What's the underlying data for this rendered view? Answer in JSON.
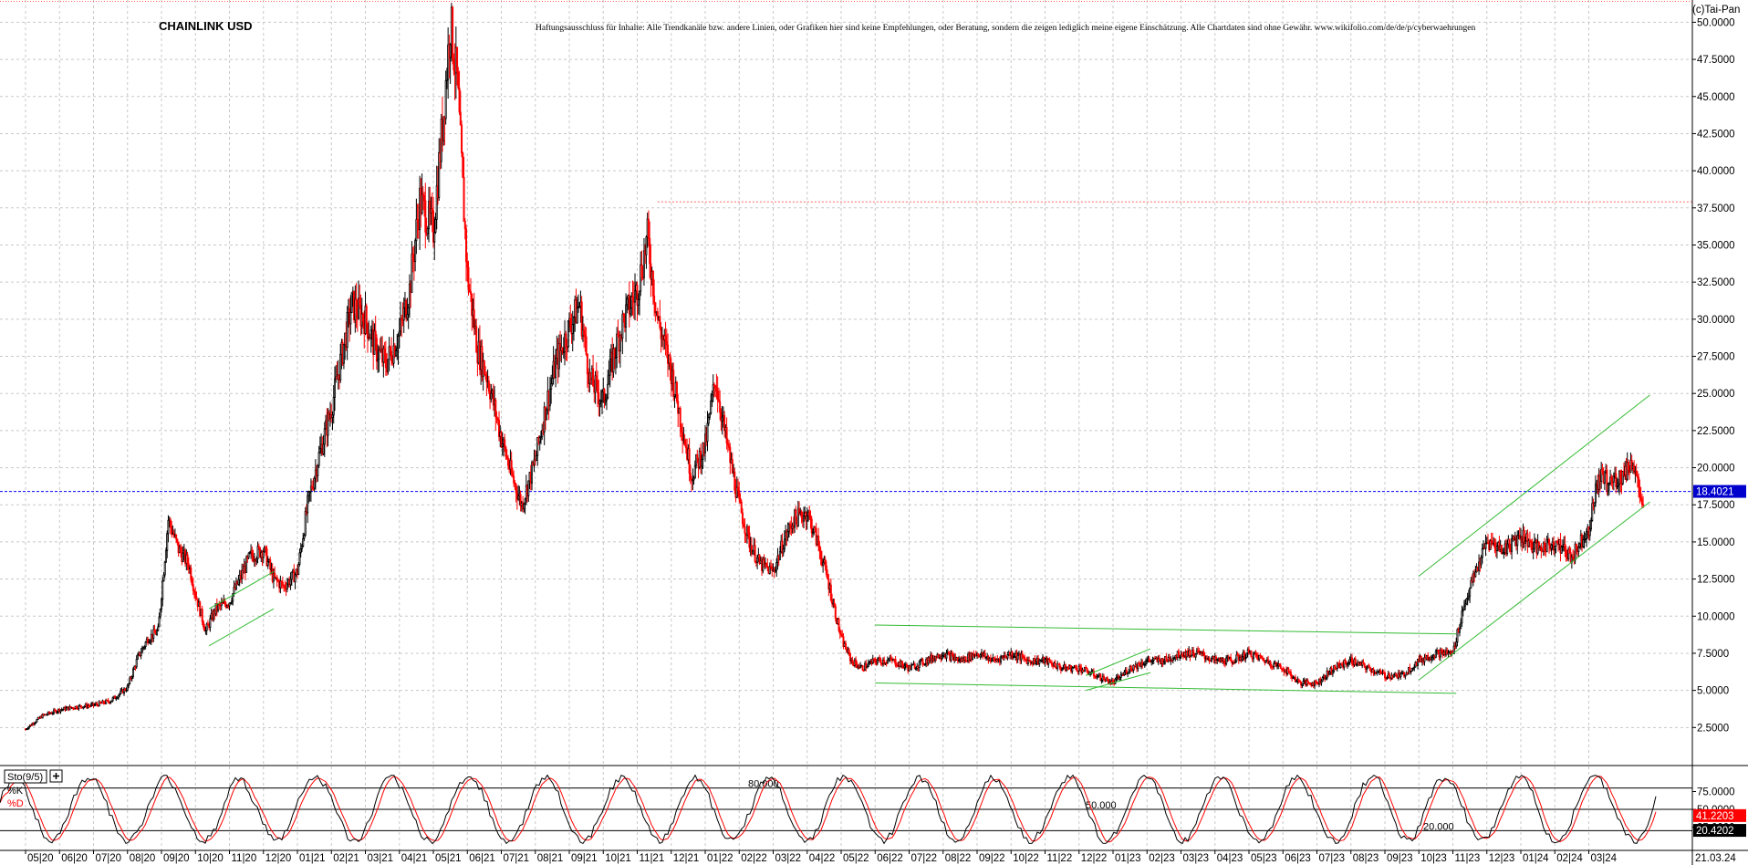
{
  "header": {
    "title": "CHAINLINK USD",
    "disclaimer": "Haftungsausschluss für Inhalte: Alle Trendkanäle bzw. andere Linien, oder Grafiken hier sind keine Empfehlungen, oder Beratung, sondern die zeigen lediglich meine eigene Einschätzung. Alle Chartdaten sind ohne Gewähr.  www.wikifolio.com/de/de/p/cyberwaehrungen",
    "copyright": "(c)Tai-Pan"
  },
  "colors": {
    "up_candle": "#000000",
    "down_candle": "#ff0000",
    "trend_lines": "#33bb33",
    "current_price_line": "#0000ff",
    "resistance_line": "#ff6666",
    "price_label_bg": "#0000cc",
    "stoch_k": "#000000",
    "stoch_d": "#ff0000",
    "grid": "#c8c8c8"
  },
  "chart_data": [
    {
      "type": "candlestick",
      "title": "CHAINLINK USD",
      "ylim": [
        0,
        51.5
      ],
      "yticks": [
        "2.5000",
        "5.0000",
        "7.5000",
        "10.0000",
        "12.5000",
        "15.0000",
        "17.5000",
        "20.0000",
        "22.5000",
        "25.0000",
        "27.5000",
        "30.0000",
        "32.5000",
        "35.0000",
        "37.5000",
        "40.0000",
        "42.5000",
        "45.0000",
        "47.5000",
        "50.0000"
      ],
      "x_tick_labels": [
        "05|20",
        "06|20",
        "07|20",
        "08|20",
        "09|20",
        "10|20",
        "11|20",
        "12|20",
        "01|21",
        "02|21",
        "03|21",
        "04|21",
        "05|21",
        "06|21",
        "07|21",
        "08|21",
        "09|21",
        "10|21",
        "11|21",
        "12|21",
        "01|22",
        "02|22",
        "03|22",
        "04|22",
        "05|22",
        "06|22",
        "07|22",
        "08|22",
        "09|22",
        "10|22",
        "11|22",
        "12|22",
        "01|23",
        "02|23",
        "03|23",
        "04|23",
        "05|23",
        "06|23",
        "07|23",
        "08|23",
        "09|23",
        "10|23",
        "11|23",
        "12|23",
        "01|24",
        "02|24",
        "03|24"
      ],
      "x_end_label": "21.03.24",
      "x_month_range": [
        0,
        47
      ],
      "close_path": [
        [
          0,
          2.4
        ],
        [
          0.5,
          3.3
        ],
        [
          1.0,
          3.7
        ],
        [
          1.5,
          3.9
        ],
        [
          2.0,
          4.0
        ],
        [
          2.5,
          4.3
        ],
        [
          3.0,
          5.2
        ],
        [
          3.3,
          7.2
        ],
        [
          3.6,
          8.5
        ],
        [
          3.9,
          9.0
        ],
        [
          4.2,
          16.5
        ],
        [
          4.5,
          14.5
        ],
        [
          4.8,
          13.5
        ],
        [
          5.0,
          11.5
        ],
        [
          5.3,
          9.0
        ],
        [
          5.6,
          10.5
        ],
        [
          6.0,
          11.0
        ],
        [
          6.3,
          12.5
        ],
        [
          6.6,
          14.0
        ],
        [
          7.0,
          14.5
        ],
        [
          7.3,
          12.5
        ],
        [
          7.6,
          12.0
        ],
        [
          8.0,
          13.0
        ],
        [
          8.3,
          17.5
        ],
        [
          8.6,
          20.5
        ],
        [
          9.0,
          24.0
        ],
        [
          9.3,
          27.5
        ],
        [
          9.6,
          31.0
        ],
        [
          10.0,
          30.0
        ],
        [
          10.3,
          28.0
        ],
        [
          10.6,
          27.0
        ],
        [
          11.0,
          29.0
        ],
        [
          11.3,
          32.0
        ],
        [
          11.6,
          38.0
        ],
        [
          12.0,
          36.0
        ],
        [
          12.3,
          44.0
        ],
        [
          12.5,
          50.0
        ],
        [
          12.7,
          46.0
        ],
        [
          13.0,
          33.0
        ],
        [
          13.3,
          28.0
        ],
        [
          13.6,
          26.0
        ],
        [
          14.0,
          22.0
        ],
        [
          14.3,
          19.5
        ],
        [
          14.6,
          17.5
        ],
        [
          15.0,
          20.5
        ],
        [
          15.3,
          24.0
        ],
        [
          15.6,
          27.0
        ],
        [
          16.0,
          29.5
        ],
        [
          16.3,
          31.0
        ],
        [
          16.6,
          26.0
        ],
        [
          17.0,
          24.5
        ],
        [
          17.3,
          27.5
        ],
        [
          17.6,
          30.0
        ],
        [
          18.0,
          32.0
        ],
        [
          18.3,
          35.5
        ],
        [
          18.6,
          30.0
        ],
        [
          19.0,
          26.5
        ],
        [
          19.3,
          23.0
        ],
        [
          19.6,
          19.5
        ],
        [
          20.0,
          21.5
        ],
        [
          20.3,
          26.0
        ],
        [
          20.6,
          22.0
        ],
        [
          21.0,
          17.5
        ],
        [
          21.3,
          15.0
        ],
        [
          21.6,
          13.5
        ],
        [
          22.0,
          13.0
        ],
        [
          22.3,
          15.0
        ],
        [
          22.6,
          16.5
        ],
        [
          23.0,
          17.0
        ],
        [
          23.3,
          15.0
        ],
        [
          23.6,
          12.5
        ],
        [
          24.0,
          8.5
        ],
        [
          24.3,
          7.0
        ],
        [
          24.6,
          6.5
        ],
        [
          25.0,
          7.0
        ],
        [
          25.5,
          7.0
        ],
        [
          26.0,
          6.5
        ],
        [
          26.5,
          7.0
        ],
        [
          27.0,
          7.5
        ],
        [
          27.5,
          7.0
        ],
        [
          28.0,
          7.5
        ],
        [
          28.5,
          7.0
        ],
        [
          29.0,
          7.5
        ],
        [
          29.5,
          7.0
        ],
        [
          30.0,
          7.0
        ],
        [
          30.5,
          6.5
        ],
        [
          31.0,
          6.5
        ],
        [
          31.5,
          6.0
        ],
        [
          32.0,
          5.5
        ],
        [
          32.5,
          6.5
        ],
        [
          33.0,
          7.0
        ],
        [
          33.5,
          7.0
        ],
        [
          34.0,
          7.5
        ],
        [
          34.5,
          7.5
        ],
        [
          35.0,
          7.0
        ],
        [
          35.5,
          7.0
        ],
        [
          36.0,
          7.5
        ],
        [
          36.5,
          7.0
        ],
        [
          37.0,
          6.5
        ],
        [
          37.5,
          5.5
        ],
        [
          38.0,
          5.5
        ],
        [
          38.5,
          6.5
        ],
        [
          39.0,
          7.0
        ],
        [
          39.5,
          6.5
        ],
        [
          40.0,
          6.0
        ],
        [
          40.5,
          6.0
        ],
        [
          41.0,
          7.0
        ],
        [
          41.5,
          7.5
        ],
        [
          42.0,
          7.5
        ],
        [
          42.3,
          10.5
        ],
        [
          42.6,
          12.5
        ],
        [
          43.0,
          15.0
        ],
        [
          43.5,
          14.5
        ],
        [
          44.0,
          15.5
        ],
        [
          44.5,
          14.5
        ],
        [
          45.0,
          15.0
        ],
        [
          45.5,
          14.0
        ],
        [
          46.0,
          16.0
        ],
        [
          46.3,
          19.5
        ],
        [
          46.6,
          19.0
        ],
        [
          47.0,
          19.5
        ],
        [
          47.3,
          20.5
        ],
        [
          47.6,
          17.0
        ]
      ],
      "trend_lines": [
        {
          "name": "channel-2020-lower",
          "from": [
            5.4,
            8.0
          ],
          "to": [
            7.3,
            10.5
          ]
        },
        {
          "name": "channel-2020-upper",
          "from": [
            5.4,
            10.5
          ],
          "to": [
            7.3,
            13.0
          ]
        },
        {
          "name": "range-2022-upper",
          "from": [
            25.0,
            9.4
          ],
          "to": [
            42.1,
            8.8
          ]
        },
        {
          "name": "range-2022-lower",
          "from": [
            25.0,
            5.5
          ],
          "to": [
            42.1,
            4.8
          ]
        },
        {
          "name": "wedge-2023-upper",
          "from": [
            31.2,
            6.0
          ],
          "to": [
            33.1,
            7.8
          ]
        },
        {
          "name": "wedge-2023-lower",
          "from": [
            31.2,
            5.0
          ],
          "to": [
            33.1,
            6.2
          ]
        },
        {
          "name": "channel-2024-upper",
          "from": [
            41.0,
            12.7
          ],
          "to": [
            47.8,
            24.9
          ]
        },
        {
          "name": "channel-2024-lower",
          "from": [
            41.0,
            5.7
          ],
          "to": [
            47.8,
            17.7
          ]
        }
      ],
      "resistance": {
        "value": 37.9,
        "from_x": 18.6
      },
      "current_price": {
        "value": 18.4021,
        "label": "18.4021"
      }
    },
    {
      "type": "line",
      "indicator_label": "Sto(9/5)",
      "series": [
        {
          "name": "%K",
          "last": 41.2203,
          "label": "41.2203"
        },
        {
          "name": "%D",
          "last": 20.4202,
          "label": "20.4202"
        }
      ],
      "levels": [
        {
          "value": 80,
          "label": "80.000"
        },
        {
          "value": 50,
          "label": "50.000"
        },
        {
          "value": 20,
          "label": "20.000"
        }
      ],
      "ylim": [
        0,
        100
      ],
      "yticks": [
        "75.0000",
        "50.0000",
        "25.0000"
      ]
    }
  ]
}
